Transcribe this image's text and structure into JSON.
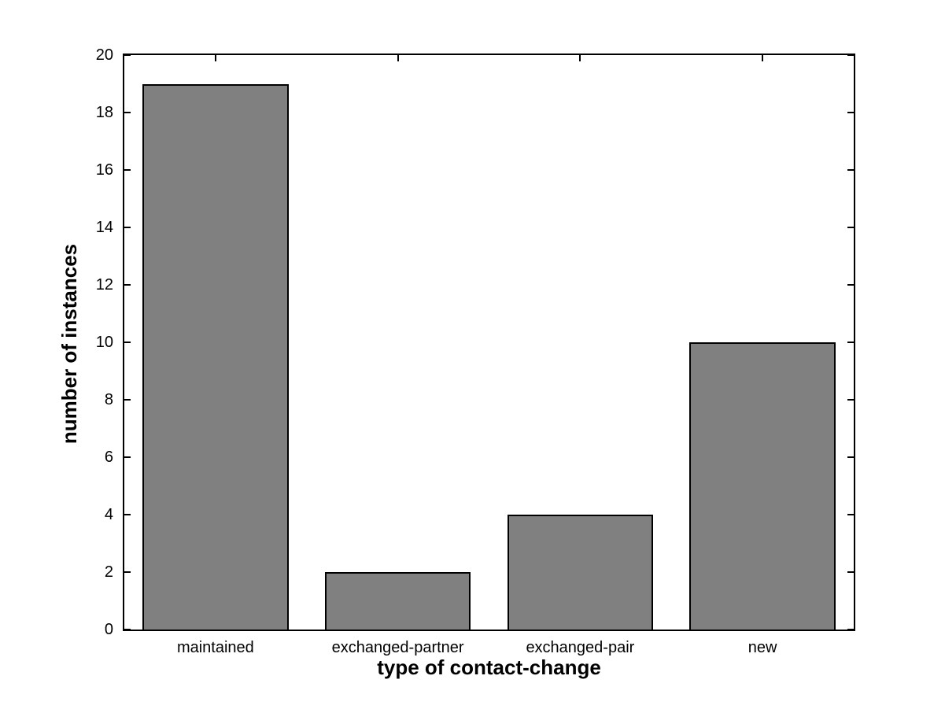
{
  "figure": {
    "background_color": "#ffffff",
    "axis_color": "#000000"
  },
  "chart_data": {
    "type": "bar",
    "categories": [
      "maintained",
      "exchanged-partner",
      "exchanged-pair",
      "new"
    ],
    "values": [
      19,
      2,
      4,
      10
    ],
    "title": "",
    "xlabel": "type of contact-change",
    "ylabel": "number of instances",
    "ylim": [
      0,
      20
    ],
    "yticks": [
      0,
      2,
      4,
      6,
      8,
      10,
      12,
      14,
      16,
      18,
      20
    ],
    "bar_width_fraction": 0.8,
    "bar_color": "#808080",
    "bar_edge_color": "#000000",
    "grid": false,
    "legend_position": "none"
  }
}
